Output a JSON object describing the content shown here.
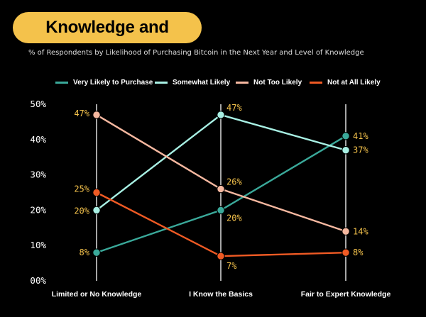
{
  "header": {
    "title": "Knowledge and Optimism",
    "subtitle": "% of Respondents by Likelihood of Purchasing Bitcoin in the Next Year and Level of Knowledge"
  },
  "colors": {
    "title_bg": "#f4c24b",
    "label": "#f4c24b",
    "gridline": "#ffffff"
  },
  "chart_data": {
    "type": "line",
    "title": "Knowledge and Optimism",
    "subtitle": "% of Respondents by Likelihood of Purchasing Bitcoin in the Next Year and Level of Knowledge",
    "categories": [
      "Limited or No Knowledge",
      "I Know the Basics",
      "Fair to Expert Knowledge"
    ],
    "yticks": [
      "00%",
      "10%",
      "20%",
      "30%",
      "40%",
      "50%"
    ],
    "ylim": [
      0,
      50
    ],
    "legend_position": "top",
    "grid": "vertical",
    "series": [
      {
        "name": "Very Likely to Purchase",
        "color": "#3aa99a",
        "values": [
          8,
          20,
          41
        ],
        "labels": [
          "8%",
          "20%",
          "41%"
        ]
      },
      {
        "name": "Somewhat Likely",
        "color": "#a8f0e4",
        "values": [
          20,
          47,
          37
        ],
        "labels": [
          "20%",
          "47%",
          "37%"
        ]
      },
      {
        "name": "Not Too Likely",
        "color": "#f6b8a0",
        "values": [
          47,
          26,
          14
        ],
        "labels": [
          "47%",
          "26%",
          "14%"
        ]
      },
      {
        "name": "Not at All Likely",
        "color": "#ef5a24",
        "values": [
          25,
          7,
          8
        ],
        "labels": [
          "25%",
          "7%",
          "8%"
        ]
      }
    ]
  }
}
